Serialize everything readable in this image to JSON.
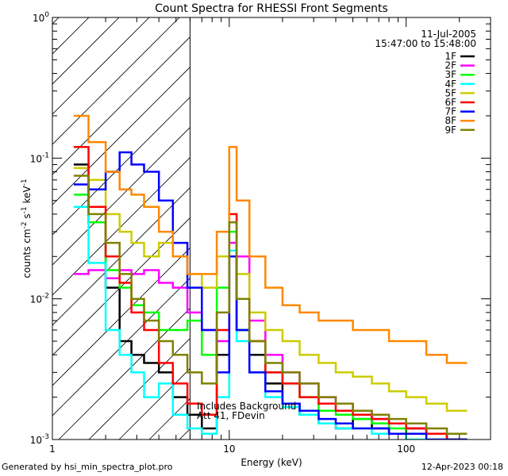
{
  "chart_data": {
    "type": "line",
    "title": "Count Spectra for RHESSI Front Segments",
    "xlabel": "Energy (keV)",
    "ylabel": "counts cm",
    "ylabel_sup1": "-2",
    "ylabel_mid": " s",
    "ylabel_sup2": "-1",
    "ylabel_end": " keV",
    "ylabel_sup3": "-1",
    "x_scale": "log",
    "y_scale": "log",
    "xlim": [
      1,
      300
    ],
    "ylim": [
      0.001,
      1
    ],
    "x_ticks": [
      {
        "v": 1,
        "label": "1"
      },
      {
        "v": 10,
        "label": "10"
      },
      {
        "v": 100,
        "label": "100"
      }
    ],
    "y_ticks": [
      {
        "v": 1,
        "mant": "10",
        "exp": "0"
      },
      {
        "v": 0.1,
        "mant": "10",
        "exp": "-1"
      },
      {
        "v": 0.01,
        "mant": "10",
        "exp": "-2"
      },
      {
        "v": 0.001,
        "mant": "10",
        "exp": "-3"
      }
    ],
    "hatch_region_keV": [
      1,
      6
    ],
    "date_label": "11-Jul-2005",
    "time_label": "15:47:00 to 15:48:00",
    "annotation_line1": "Includes Background",
    "annotation_line2": "Att 41, FDevin",
    "series": [
      {
        "name": "1F",
        "color": "#000000",
        "bins": [
          [
            1.32,
            0.09
          ],
          [
            1.6,
            0.035
          ],
          [
            2.0,
            0.012
          ],
          [
            2.4,
            0.005
          ],
          [
            2.8,
            0.004
          ],
          [
            3.3,
            0.0035
          ],
          [
            4.0,
            0.003
          ],
          [
            4.8,
            0.002
          ],
          [
            5.8,
            0.0015
          ],
          [
            7.0,
            0.0012
          ],
          [
            8.5,
            0.004
          ],
          [
            10,
            0.02
          ],
          [
            11,
            0.006
          ],
          [
            13,
            0.004
          ],
          [
            16,
            0.0025
          ],
          [
            20,
            0.0018
          ],
          [
            25,
            0.0015
          ],
          [
            32,
            0.0013
          ],
          [
            40,
            0.0012
          ],
          [
            50,
            0.0014
          ],
          [
            64,
            0.0012
          ],
          [
            80,
            0.0011
          ],
          [
            100,
            0.0012
          ],
          [
            130,
            0.0011
          ],
          [
            170,
            0.001
          ]
        ]
      },
      {
        "name": "2F",
        "color": "#ff00ff",
        "bins": [
          [
            1.32,
            0.015
          ],
          [
            1.6,
            0.016
          ],
          [
            2.0,
            0.014
          ],
          [
            2.4,
            0.016
          ],
          [
            2.8,
            0.015
          ],
          [
            3.3,
            0.016
          ],
          [
            4.0,
            0.013
          ],
          [
            4.8,
            0.012
          ],
          [
            5.8,
            0.008
          ],
          [
            7.0,
            0.006
          ],
          [
            8.5,
            0.005
          ],
          [
            10,
            0.025
          ],
          [
            11,
            0.02
          ],
          [
            13,
            0.007
          ],
          [
            16,
            0.004
          ],
          [
            20,
            0.003
          ],
          [
            25,
            0.0025
          ],
          [
            32,
            0.002
          ],
          [
            40,
            0.0018
          ],
          [
            50,
            0.0016
          ],
          [
            64,
            0.0014
          ],
          [
            80,
            0.0013
          ],
          [
            100,
            0.0012
          ],
          [
            130,
            0.0011
          ],
          [
            170,
            0.001
          ]
        ]
      },
      {
        "name": "3F",
        "color": "#00ff00",
        "bins": [
          [
            1.32,
            0.055
          ],
          [
            1.6,
            0.035
          ],
          [
            2.0,
            0.016
          ],
          [
            2.4,
            0.012
          ],
          [
            2.8,
            0.009
          ],
          [
            3.3,
            0.008
          ],
          [
            4.0,
            0.006
          ],
          [
            4.8,
            0.006
          ],
          [
            5.8,
            0.007
          ],
          [
            7.0,
            0.004
          ],
          [
            8.5,
            0.012
          ],
          [
            10,
            0.03
          ],
          [
            11,
            0.006
          ],
          [
            13,
            0.005
          ],
          [
            16,
            0.003
          ],
          [
            20,
            0.0025
          ],
          [
            25,
            0.002
          ],
          [
            32,
            0.0016
          ],
          [
            40,
            0.0015
          ],
          [
            50,
            0.0014
          ],
          [
            64,
            0.0013
          ],
          [
            80,
            0.0012
          ],
          [
            100,
            0.0011
          ],
          [
            130,
            0.0011
          ],
          [
            170,
            0.001
          ]
        ]
      },
      {
        "name": "4F",
        "color": "#00ffff",
        "bins": [
          [
            1.32,
            0.045
          ],
          [
            1.6,
            0.018
          ],
          [
            2.0,
            0.006
          ],
          [
            2.4,
            0.004
          ],
          [
            2.8,
            0.003
          ],
          [
            3.3,
            0.002
          ],
          [
            4.0,
            0.0025
          ],
          [
            4.8,
            0.0015
          ],
          [
            5.8,
            0.0012
          ],
          [
            7.0,
            0.0011
          ],
          [
            8.5,
            0.002
          ],
          [
            10,
            0.022
          ],
          [
            11,
            0.005
          ],
          [
            13,
            0.003
          ],
          [
            16,
            0.002
          ],
          [
            20,
            0.0017
          ],
          [
            25,
            0.0015
          ],
          [
            32,
            0.0013
          ],
          [
            40,
            0.0012
          ],
          [
            50,
            0.0012
          ],
          [
            64,
            0.0011
          ],
          [
            80,
            0.0011
          ],
          [
            100,
            0.001
          ],
          [
            130,
            0.001
          ],
          [
            170,
            0.001
          ]
        ]
      },
      {
        "name": "5F",
        "color": "#cccc00",
        "bins": [
          [
            1.32,
            0.085
          ],
          [
            1.6,
            0.07
          ],
          [
            2.0,
            0.04
          ],
          [
            2.4,
            0.03
          ],
          [
            2.8,
            0.025
          ],
          [
            3.3,
            0.02
          ],
          [
            4.0,
            0.025
          ],
          [
            4.8,
            0.02
          ],
          [
            5.8,
            0.015
          ],
          [
            7.0,
            0.012
          ],
          [
            8.5,
            0.02
          ],
          [
            10,
            0.04
          ],
          [
            11,
            0.015
          ],
          [
            13,
            0.008
          ],
          [
            16,
            0.006
          ],
          [
            20,
            0.005
          ],
          [
            25,
            0.004
          ],
          [
            32,
            0.0035
          ],
          [
            40,
            0.003
          ],
          [
            50,
            0.0028
          ],
          [
            64,
            0.0025
          ],
          [
            80,
            0.0022
          ],
          [
            100,
            0.002
          ],
          [
            130,
            0.0018
          ],
          [
            170,
            0.0016
          ]
        ]
      },
      {
        "name": "6F",
        "color": "#ff0000",
        "bins": [
          [
            1.32,
            0.12
          ],
          [
            1.6,
            0.045
          ],
          [
            2.0,
            0.02
          ],
          [
            2.4,
            0.013
          ],
          [
            2.8,
            0.008
          ],
          [
            3.3,
            0.006
          ],
          [
            4.0,
            0.0035
          ],
          [
            4.8,
            0.0025
          ],
          [
            5.8,
            0.0018
          ],
          [
            7.0,
            0.0015
          ],
          [
            8.5,
            0.006
          ],
          [
            10,
            0.04
          ],
          [
            11,
            0.01
          ],
          [
            13,
            0.005
          ],
          [
            16,
            0.003
          ],
          [
            20,
            0.0025
          ],
          [
            25,
            0.002
          ],
          [
            32,
            0.0018
          ],
          [
            40,
            0.0016
          ],
          [
            50,
            0.0015
          ],
          [
            64,
            0.0014
          ],
          [
            80,
            0.0013
          ],
          [
            100,
            0.0012
          ],
          [
            130,
            0.0011
          ],
          [
            170,
            0.001
          ]
        ]
      },
      {
        "name": "7F",
        "color": "#0000ff",
        "bins": [
          [
            1.32,
            0.065
          ],
          [
            1.6,
            0.06
          ],
          [
            2.0,
            0.08
          ],
          [
            2.4,
            0.11
          ],
          [
            2.8,
            0.09
          ],
          [
            3.3,
            0.08
          ],
          [
            4.0,
            0.05
          ],
          [
            4.8,
            0.025
          ],
          [
            5.8,
            0.012
          ],
          [
            7.0,
            0.006
          ],
          [
            8.5,
            0.003
          ],
          [
            10,
            0.02
          ],
          [
            11,
            0.006
          ],
          [
            13,
            0.003
          ],
          [
            16,
            0.0022
          ],
          [
            20,
            0.0018
          ],
          [
            25,
            0.0016
          ],
          [
            32,
            0.0014
          ],
          [
            40,
            0.0013
          ],
          [
            50,
            0.0012
          ],
          [
            64,
            0.0012
          ],
          [
            80,
            0.0011
          ],
          [
            100,
            0.0011
          ],
          [
            130,
            0.001
          ],
          [
            170,
            0.001
          ]
        ]
      },
      {
        "name": "8F",
        "color": "#ff8800",
        "bins": [
          [
            1.32,
            0.2
          ],
          [
            1.6,
            0.13
          ],
          [
            2.0,
            0.08
          ],
          [
            2.4,
            0.06
          ],
          [
            2.8,
            0.055
          ],
          [
            3.3,
            0.045
          ],
          [
            4.0,
            0.03
          ],
          [
            4.8,
            0.02
          ],
          [
            5.8,
            0.015
          ],
          [
            7.0,
            0.015
          ],
          [
            8.5,
            0.03
          ],
          [
            10,
            0.12
          ],
          [
            11,
            0.05
          ],
          [
            13,
            0.02
          ],
          [
            16,
            0.012
          ],
          [
            20,
            0.009
          ],
          [
            25,
            0.008
          ],
          [
            32,
            0.007
          ],
          [
            40,
            0.007
          ],
          [
            50,
            0.006
          ],
          [
            64,
            0.006
          ],
          [
            80,
            0.005
          ],
          [
            100,
            0.005
          ],
          [
            130,
            0.004
          ],
          [
            170,
            0.0035
          ]
        ]
      },
      {
        "name": "9F",
        "color": "#808000",
        "bins": [
          [
            1.32,
            0.075
          ],
          [
            1.6,
            0.04
          ],
          [
            2.0,
            0.025
          ],
          [
            2.4,
            0.015
          ],
          [
            2.8,
            0.01
          ],
          [
            3.3,
            0.007
          ],
          [
            4.0,
            0.005
          ],
          [
            4.8,
            0.004
          ],
          [
            5.8,
            0.003
          ],
          [
            7.0,
            0.0025
          ],
          [
            8.5,
            0.008
          ],
          [
            10,
            0.035
          ],
          [
            11,
            0.01
          ],
          [
            13,
            0.005
          ],
          [
            16,
            0.0035
          ],
          [
            20,
            0.003
          ],
          [
            25,
            0.0025
          ],
          [
            32,
            0.002
          ],
          [
            40,
            0.0018
          ],
          [
            50,
            0.0016
          ],
          [
            64,
            0.0015
          ],
          [
            80,
            0.0014
          ],
          [
            100,
            0.0013
          ],
          [
            130,
            0.0012
          ],
          [
            170,
            0.0011
          ]
        ]
      }
    ]
  },
  "footer": {
    "left": "Generated by hsi_min_spectra_plot.pro",
    "right": "12-Apr-2023 00:18"
  }
}
